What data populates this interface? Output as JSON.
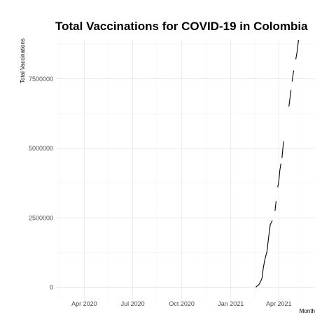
{
  "chart_data": {
    "type": "line",
    "title": "Total Vaccinations for COVID-19 in Colombia",
    "xlabel": "Month",
    "ylabel": "Total Vaccinations",
    "x_range": [
      "2020-02-08",
      "2021-06-08"
    ],
    "ylim": [
      -420000,
      8900000
    ],
    "x_ticks": [
      {
        "date": "2020-04-01",
        "label": "Apr 2020"
      },
      {
        "date": "2020-07-01",
        "label": "Jul 2020"
      },
      {
        "date": "2020-10-01",
        "label": "Oct 2020"
      },
      {
        "date": "2021-01-01",
        "label": "Jan 2021"
      },
      {
        "date": "2021-04-01",
        "label": "Apr 2021"
      }
    ],
    "x_minor_ticks": [
      "2020-02-15",
      "2020-05-15",
      "2020-08-15",
      "2020-11-15",
      "2021-02-15",
      "2021-05-15"
    ],
    "y_ticks": [
      0,
      2500000,
      5000000,
      7500000
    ],
    "y_tick_labels": [
      "0",
      "2500000",
      "5000000",
      "7500000"
    ],
    "y_minor_ticks": [
      1250000,
      3750000,
      6250000,
      8750000
    ],
    "grid": true,
    "segments": [
      [
        {
          "x": "2021-02-17",
          "y": 0
        },
        {
          "x": "2021-02-20",
          "y": 50000
        },
        {
          "x": "2021-02-23",
          "y": 100000
        },
        {
          "x": "2021-02-27",
          "y": 250000
        },
        {
          "x": "2021-03-01",
          "y": 350000
        },
        {
          "x": "2021-03-03",
          "y": 700000
        },
        {
          "x": "2021-03-06",
          "y": 1000000
        },
        {
          "x": "2021-03-10",
          "y": 1300000
        },
        {
          "x": "2021-03-13",
          "y": 1800000
        },
        {
          "x": "2021-03-16",
          "y": 2250000
        },
        {
          "x": "2021-03-20",
          "y": 2400000
        }
      ],
      [
        {
          "x": "2021-03-25",
          "y": 2750000
        },
        {
          "x": "2021-03-27",
          "y": 3100000
        }
      ],
      [
        {
          "x": "2021-03-30",
          "y": 3600000
        },
        {
          "x": "2021-04-01",
          "y": 3800000
        },
        {
          "x": "2021-04-03",
          "y": 4200000
        },
        {
          "x": "2021-04-05",
          "y": 4450000
        }
      ],
      [
        {
          "x": "2021-04-07",
          "y": 4650000
        },
        {
          "x": "2021-04-10",
          "y": 5250000
        }
      ],
      [
        {
          "x": "2021-04-20",
          "y": 6500000
        },
        {
          "x": "2021-04-24",
          "y": 7100000
        }
      ],
      [
        {
          "x": "2021-04-26",
          "y": 7400000
        },
        {
          "x": "2021-04-29",
          "y": 7800000
        }
      ],
      [
        {
          "x": "2021-05-03",
          "y": 8200000
        },
        {
          "x": "2021-05-06",
          "y": 8550000
        },
        {
          "x": "2021-05-08",
          "y": 8900000
        }
      ]
    ]
  }
}
